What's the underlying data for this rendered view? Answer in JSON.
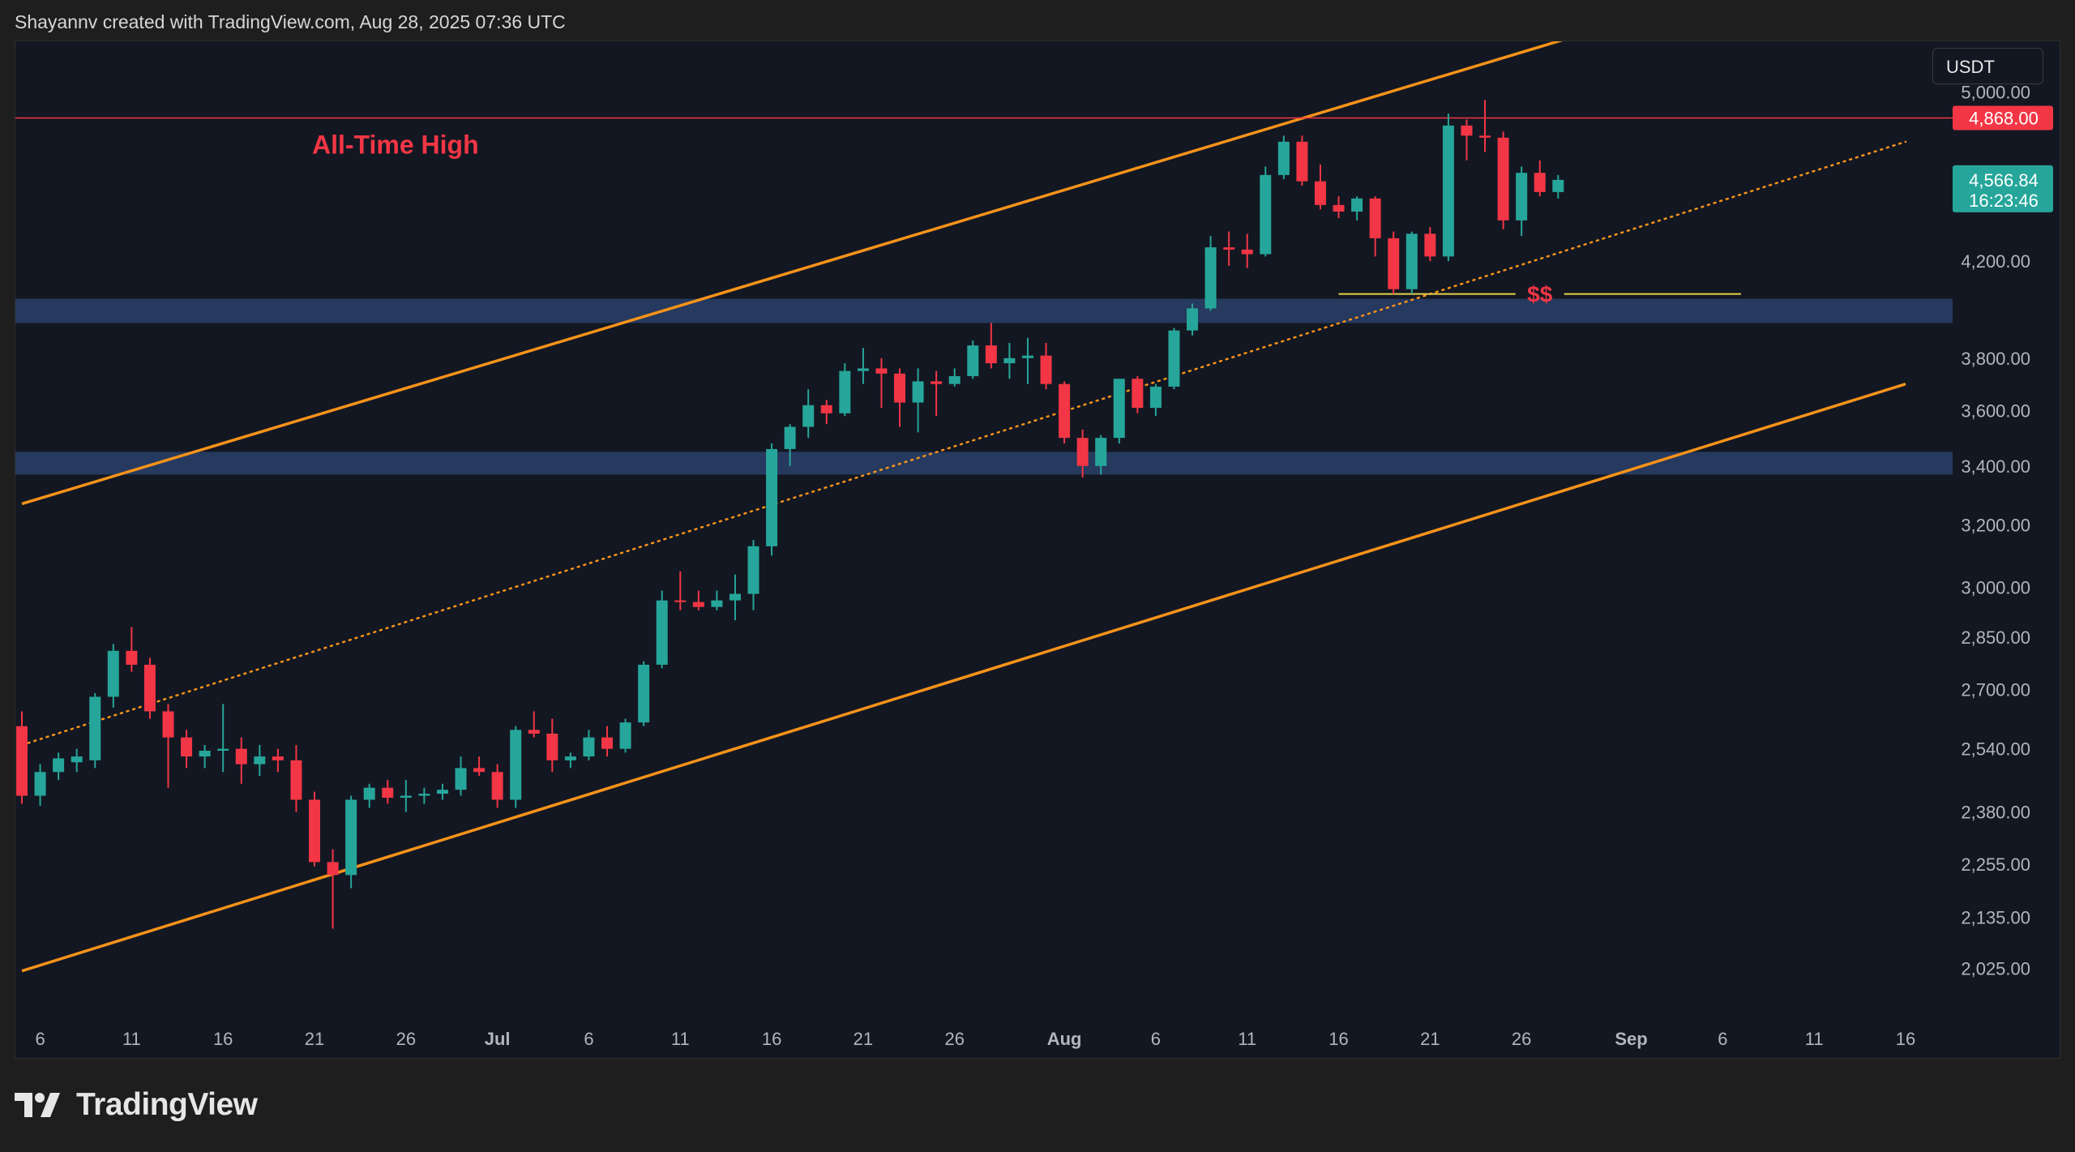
{
  "header": {
    "attribution": "Shayannv created with TradingView.com, Aug 28, 2025 07:36 UTC"
  },
  "currency": "USDT",
  "footer": {
    "brand": "TradingView"
  },
  "colors": {
    "background": "#131722",
    "bullish": "#26a69a",
    "bearish": "#f23645",
    "channel": "#f7931a",
    "ath_line": "#f23645",
    "support_zone": "#2a4068",
    "liquidity_line": "#e9d14a",
    "axis_text": "#b2b5be"
  },
  "chart_data": {
    "type": "candlestick",
    "symbol_quote": "USDT",
    "y_scale": "log",
    "ylim": [
      1940,
      5420
    ],
    "x_range": [
      "2025-06-05",
      "2025-09-16"
    ],
    "y_ticks": [
      5000,
      4200,
      3800,
      3600,
      3400,
      3200,
      3000,
      2850,
      2700,
      2540,
      2380,
      2255,
      2135,
      2025
    ],
    "y_tick_labels": [
      "5,000.00",
      "4,200.00",
      "3,800.00",
      "3,600.00",
      "3,400.00",
      "3,200.00",
      "3,000.00",
      "2,850.00",
      "2,700.00",
      "2,540.00",
      "2,380.00",
      "2,255.00",
      "2,135.00",
      "2,025.00"
    ],
    "x_ticks": [
      {
        "date": "2025-06-06",
        "label": "6"
      },
      {
        "date": "2025-06-11",
        "label": "11"
      },
      {
        "date": "2025-06-16",
        "label": "16"
      },
      {
        "date": "2025-06-21",
        "label": "21"
      },
      {
        "date": "2025-06-26",
        "label": "26"
      },
      {
        "date": "2025-07-01",
        "label": "Jul",
        "bold": true
      },
      {
        "date": "2025-07-06",
        "label": "6"
      },
      {
        "date": "2025-07-11",
        "label": "11"
      },
      {
        "date": "2025-07-16",
        "label": "16"
      },
      {
        "date": "2025-07-21",
        "label": "21"
      },
      {
        "date": "2025-07-26",
        "label": "26"
      },
      {
        "date": "2025-08-01",
        "label": "Aug",
        "bold": true
      },
      {
        "date": "2025-08-06",
        "label": "6"
      },
      {
        "date": "2025-08-11",
        "label": "11"
      },
      {
        "date": "2025-08-16",
        "label": "16"
      },
      {
        "date": "2025-08-21",
        "label": "21"
      },
      {
        "date": "2025-08-26",
        "label": "26"
      },
      {
        "date": "2025-09-01",
        "label": "Sep",
        "bold": true
      },
      {
        "date": "2025-09-06",
        "label": "6"
      },
      {
        "date": "2025-09-11",
        "label": "11"
      },
      {
        "date": "2025-09-16",
        "label": "16"
      }
    ],
    "candles": [
      {
        "date": "2025-06-05",
        "o": 2600,
        "h": 2640,
        "l": 2400,
        "c": 2420
      },
      {
        "date": "2025-06-06",
        "o": 2420,
        "h": 2500,
        "l": 2395,
        "c": 2480
      },
      {
        "date": "2025-06-07",
        "o": 2480,
        "h": 2530,
        "l": 2460,
        "c": 2515
      },
      {
        "date": "2025-06-08",
        "o": 2505,
        "h": 2540,
        "l": 2480,
        "c": 2520
      },
      {
        "date": "2025-06-09",
        "o": 2510,
        "h": 2690,
        "l": 2490,
        "c": 2680
      },
      {
        "date": "2025-06-10",
        "o": 2680,
        "h": 2830,
        "l": 2650,
        "c": 2810
      },
      {
        "date": "2025-06-11",
        "o": 2810,
        "h": 2880,
        "l": 2750,
        "c": 2770
      },
      {
        "date": "2025-06-12",
        "o": 2770,
        "h": 2790,
        "l": 2620,
        "c": 2640
      },
      {
        "date": "2025-06-13",
        "o": 2640,
        "h": 2660,
        "l": 2440,
        "c": 2570
      },
      {
        "date": "2025-06-14",
        "o": 2570,
        "h": 2590,
        "l": 2490,
        "c": 2520
      },
      {
        "date": "2025-06-15",
        "o": 2520,
        "h": 2550,
        "l": 2490,
        "c": 2535
      },
      {
        "date": "2025-06-16",
        "o": 2535,
        "h": 2660,
        "l": 2480,
        "c": 2540
      },
      {
        "date": "2025-06-17",
        "o": 2540,
        "h": 2570,
        "l": 2450,
        "c": 2500
      },
      {
        "date": "2025-06-18",
        "o": 2500,
        "h": 2550,
        "l": 2470,
        "c": 2520
      },
      {
        "date": "2025-06-19",
        "o": 2520,
        "h": 2540,
        "l": 2480,
        "c": 2510
      },
      {
        "date": "2025-06-20",
        "o": 2510,
        "h": 2550,
        "l": 2380,
        "c": 2410
      },
      {
        "date": "2025-06-21",
        "o": 2410,
        "h": 2430,
        "l": 2250,
        "c": 2260
      },
      {
        "date": "2025-06-22",
        "o": 2260,
        "h": 2290,
        "l": 2110,
        "c": 2230
      },
      {
        "date": "2025-06-23",
        "o": 2230,
        "h": 2420,
        "l": 2200,
        "c": 2410
      },
      {
        "date": "2025-06-24",
        "o": 2410,
        "h": 2450,
        "l": 2390,
        "c": 2440
      },
      {
        "date": "2025-06-25",
        "o": 2440,
        "h": 2460,
        "l": 2400,
        "c": 2415
      },
      {
        "date": "2025-06-26",
        "o": 2415,
        "h": 2460,
        "l": 2380,
        "c": 2420
      },
      {
        "date": "2025-06-27",
        "o": 2420,
        "h": 2440,
        "l": 2400,
        "c": 2425
      },
      {
        "date": "2025-06-28",
        "o": 2425,
        "h": 2450,
        "l": 2410,
        "c": 2435
      },
      {
        "date": "2025-06-29",
        "o": 2435,
        "h": 2520,
        "l": 2420,
        "c": 2490
      },
      {
        "date": "2025-06-30",
        "o": 2490,
        "h": 2520,
        "l": 2470,
        "c": 2480
      },
      {
        "date": "2025-07-01",
        "o": 2480,
        "h": 2500,
        "l": 2390,
        "c": 2410
      },
      {
        "date": "2025-07-02",
        "o": 2410,
        "h": 2600,
        "l": 2390,
        "c": 2590
      },
      {
        "date": "2025-07-03",
        "o": 2590,
        "h": 2640,
        "l": 2570,
        "c": 2580
      },
      {
        "date": "2025-07-04",
        "o": 2580,
        "h": 2620,
        "l": 2480,
        "c": 2510
      },
      {
        "date": "2025-07-05",
        "o": 2510,
        "h": 2530,
        "l": 2490,
        "c": 2520
      },
      {
        "date": "2025-07-06",
        "o": 2520,
        "h": 2590,
        "l": 2510,
        "c": 2570
      },
      {
        "date": "2025-07-07",
        "o": 2570,
        "h": 2600,
        "l": 2520,
        "c": 2540
      },
      {
        "date": "2025-07-08",
        "o": 2540,
        "h": 2620,
        "l": 2530,
        "c": 2610
      },
      {
        "date": "2025-07-09",
        "o": 2610,
        "h": 2780,
        "l": 2600,
        "c": 2770
      },
      {
        "date": "2025-07-10",
        "o": 2770,
        "h": 2990,
        "l": 2760,
        "c": 2960
      },
      {
        "date": "2025-07-11",
        "o": 2960,
        "h": 3050,
        "l": 2930,
        "c": 2955
      },
      {
        "date": "2025-07-12",
        "o": 2955,
        "h": 2990,
        "l": 2930,
        "c": 2940
      },
      {
        "date": "2025-07-13",
        "o": 2940,
        "h": 2990,
        "l": 2930,
        "c": 2960
      },
      {
        "date": "2025-07-14",
        "o": 2960,
        "h": 3040,
        "l": 2900,
        "c": 2980
      },
      {
        "date": "2025-07-15",
        "o": 2980,
        "h": 3150,
        "l": 2930,
        "c": 3130
      },
      {
        "date": "2025-07-16",
        "o": 3130,
        "h": 3480,
        "l": 3100,
        "c": 3460
      },
      {
        "date": "2025-07-17",
        "o": 3460,
        "h": 3550,
        "l": 3400,
        "c": 3540
      },
      {
        "date": "2025-07-18",
        "o": 3540,
        "h": 3680,
        "l": 3500,
        "c": 3620
      },
      {
        "date": "2025-07-19",
        "o": 3620,
        "h": 3640,
        "l": 3550,
        "c": 3590
      },
      {
        "date": "2025-07-20",
        "o": 3590,
        "h": 3780,
        "l": 3580,
        "c": 3750
      },
      {
        "date": "2025-07-21",
        "o": 3750,
        "h": 3840,
        "l": 3700,
        "c": 3760
      },
      {
        "date": "2025-07-22",
        "o": 3760,
        "h": 3800,
        "l": 3610,
        "c": 3740
      },
      {
        "date": "2025-07-23",
        "o": 3740,
        "h": 3760,
        "l": 3540,
        "c": 3630
      },
      {
        "date": "2025-07-24",
        "o": 3630,
        "h": 3760,
        "l": 3520,
        "c": 3710
      },
      {
        "date": "2025-07-25",
        "o": 3710,
        "h": 3750,
        "l": 3580,
        "c": 3700
      },
      {
        "date": "2025-07-26",
        "o": 3700,
        "h": 3760,
        "l": 3690,
        "c": 3730
      },
      {
        "date": "2025-07-27",
        "o": 3730,
        "h": 3870,
        "l": 3720,
        "c": 3850
      },
      {
        "date": "2025-07-28",
        "o": 3850,
        "h": 3940,
        "l": 3760,
        "c": 3780
      },
      {
        "date": "2025-07-29",
        "o": 3780,
        "h": 3860,
        "l": 3720,
        "c": 3800
      },
      {
        "date": "2025-07-30",
        "o": 3800,
        "h": 3880,
        "l": 3700,
        "c": 3810
      },
      {
        "date": "2025-07-31",
        "o": 3810,
        "h": 3860,
        "l": 3680,
        "c": 3700
      },
      {
        "date": "2025-08-01",
        "o": 3700,
        "h": 3710,
        "l": 3480,
        "c": 3500
      },
      {
        "date": "2025-08-02",
        "o": 3500,
        "h": 3530,
        "l": 3360,
        "c": 3400
      },
      {
        "date": "2025-08-03",
        "o": 3400,
        "h": 3510,
        "l": 3370,
        "c": 3500
      },
      {
        "date": "2025-08-04",
        "o": 3500,
        "h": 3720,
        "l": 3480,
        "c": 3720
      },
      {
        "date": "2025-08-05",
        "o": 3720,
        "h": 3730,
        "l": 3590,
        "c": 3610
      },
      {
        "date": "2025-08-06",
        "o": 3610,
        "h": 3700,
        "l": 3580,
        "c": 3690
      },
      {
        "date": "2025-08-07",
        "o": 3690,
        "h": 3920,
        "l": 3680,
        "c": 3910
      },
      {
        "date": "2025-08-08",
        "o": 3910,
        "h": 4020,
        "l": 3890,
        "c": 4000
      },
      {
        "date": "2025-08-09",
        "o": 4000,
        "h": 4310,
        "l": 3990,
        "c": 4260
      },
      {
        "date": "2025-08-10",
        "o": 4260,
        "h": 4330,
        "l": 4180,
        "c": 4250
      },
      {
        "date": "2025-08-11",
        "o": 4250,
        "h": 4320,
        "l": 4170,
        "c": 4230
      },
      {
        "date": "2025-08-12",
        "o": 4230,
        "h": 4630,
        "l": 4220,
        "c": 4590
      },
      {
        "date": "2025-08-13",
        "o": 4590,
        "h": 4780,
        "l": 4570,
        "c": 4750
      },
      {
        "date": "2025-08-14",
        "o": 4750,
        "h": 4780,
        "l": 4540,
        "c": 4560
      },
      {
        "date": "2025-08-15",
        "o": 4560,
        "h": 4640,
        "l": 4430,
        "c": 4450
      },
      {
        "date": "2025-08-16",
        "o": 4450,
        "h": 4490,
        "l": 4390,
        "c": 4420
      },
      {
        "date": "2025-08-17",
        "o": 4420,
        "h": 4490,
        "l": 4380,
        "c": 4480
      },
      {
        "date": "2025-08-18",
        "o": 4480,
        "h": 4490,
        "l": 4220,
        "c": 4300
      },
      {
        "date": "2025-08-19",
        "o": 4300,
        "h": 4330,
        "l": 4060,
        "c": 4080
      },
      {
        "date": "2025-08-20",
        "o": 4080,
        "h": 4330,
        "l": 4060,
        "c": 4320
      },
      {
        "date": "2025-08-21",
        "o": 4320,
        "h": 4350,
        "l": 4200,
        "c": 4220
      },
      {
        "date": "2025-08-22",
        "o": 4220,
        "h": 4890,
        "l": 4200,
        "c": 4830
      },
      {
        "date": "2025-08-23",
        "o": 4830,
        "h": 4860,
        "l": 4660,
        "c": 4780
      },
      {
        "date": "2025-08-24",
        "o": 4780,
        "h": 4960,
        "l": 4700,
        "c": 4770
      },
      {
        "date": "2025-08-25",
        "o": 4770,
        "h": 4800,
        "l": 4340,
        "c": 4380
      },
      {
        "date": "2025-08-26",
        "o": 4380,
        "h": 4630,
        "l": 4310,
        "c": 4600
      },
      {
        "date": "2025-08-27",
        "o": 4600,
        "h": 4660,
        "l": 4490,
        "c": 4510
      },
      {
        "date": "2025-08-28",
        "o": 4510,
        "h": 4590,
        "l": 4480,
        "c": 4566.84
      }
    ],
    "annotations": {
      "ath": {
        "label": "All-Time High",
        "value": 4868,
        "value_label": "4,868.00"
      },
      "last_price": {
        "value": 4566.84,
        "value_label": "4,566.84",
        "countdown": "16:23:46"
      },
      "liquidity": {
        "label": "$$",
        "value": 4060,
        "from": "2025-08-16",
        "to": "2025-09-07"
      },
      "support_zones": [
        {
          "low": 3940,
          "high": 4040
        },
        {
          "low": 3370,
          "high": 3450
        }
      ],
      "channel": {
        "upper": [
          {
            "date": "2025-06-05",
            "value": 3270
          },
          {
            "date": "2025-09-02",
            "value": 5420
          }
        ],
        "middle": [
          {
            "date": "2025-06-05",
            "value": 2550
          },
          {
            "date": "2025-09-16",
            "value": 4750
          }
        ],
        "lower": [
          {
            "date": "2025-06-05",
            "value": 2020
          },
          {
            "date": "2025-09-16",
            "value": 3700
          }
        ]
      }
    }
  }
}
